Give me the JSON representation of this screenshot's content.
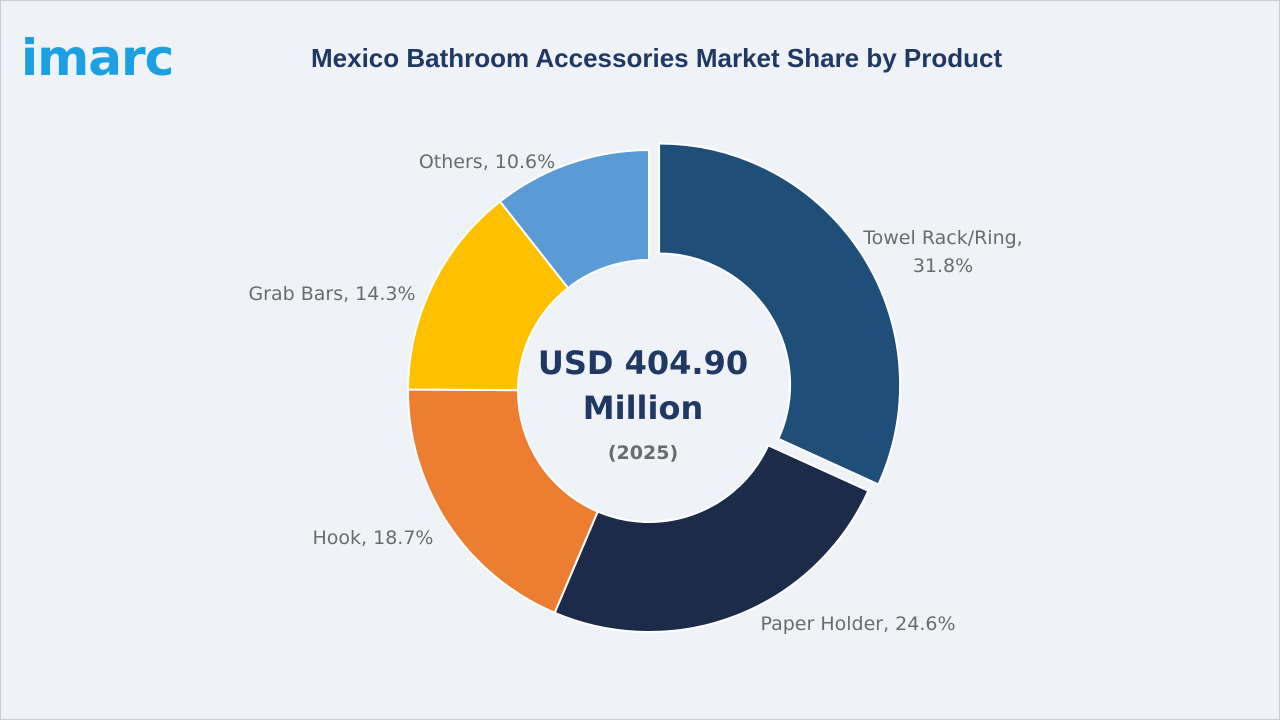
{
  "brand": {
    "logo_text": "imarc",
    "logo_color": "#1ba1e2"
  },
  "title": "Mexico Bathroom Accessories Market Share by Product",
  "chart_data": {
    "type": "pie",
    "variant": "donut",
    "title": "Mexico Bathroom Accessories Market Share by Product",
    "center": {
      "value_line1": "USD 404.90",
      "value_line2": "Million",
      "year": "(2025)"
    },
    "slices": [
      {
        "label": "Towel Rack/Ring",
        "value": 31.8,
        "text": "Towel Rack/Ring,",
        "text2": "31.8%",
        "color": "#1f4e79",
        "exploded": true
      },
      {
        "label": "Paper Holder",
        "value": 24.6,
        "text": "Paper Holder, 24.6%",
        "color": "#1c2b4a",
        "exploded": false
      },
      {
        "label": "Hook",
        "value": 18.7,
        "text": "Hook, 18.7%",
        "color": "#ed7d31",
        "exploded": false
      },
      {
        "label": "Grab Bars",
        "value": 14.3,
        "text": "Grab Bars, 14.3%",
        "color": "#ffc000",
        "exploded": false
      },
      {
        "label": "Others",
        "value": 10.6,
        "text": "Others, 10.6%",
        "color": "#5b9bd5",
        "exploded": false
      }
    ]
  }
}
